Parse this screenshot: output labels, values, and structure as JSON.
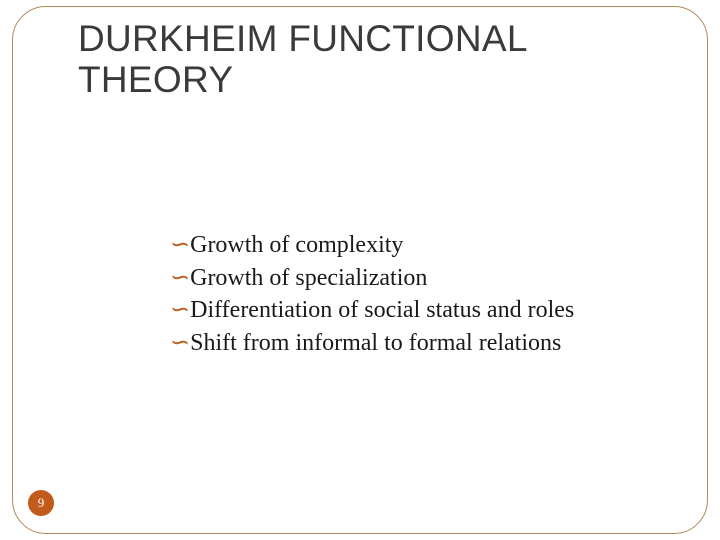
{
  "title": "DURKHEIM FUNCTIONAL THEORY",
  "bullet_glyph": "་",
  "accent_color": "#c15a1a",
  "border_color": "#b08a5a",
  "text_color": "#1a1a1a",
  "title_color": "#3a3a3a",
  "title_font": "Arial",
  "body_font": "Georgia",
  "title_fontsize": 37,
  "body_fontsize": 24,
  "bullets": [
    "Growth of complexity",
    "Growth of specialization",
    "Differentiation of social status and roles",
    "Shift from informal to formal relations"
  ],
  "page_number": "9"
}
